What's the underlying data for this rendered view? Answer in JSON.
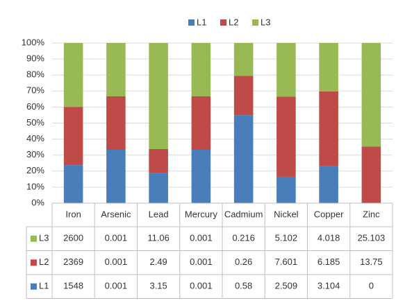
{
  "chart_data": {
    "type": "bar",
    "stacked": "percent",
    "categories": [
      "Iron",
      "Arsenic",
      "Lead",
      "Mercury",
      "Cadmium",
      "Nickel",
      "Copper",
      "Zinc"
    ],
    "series": [
      {
        "name": "L1",
        "color": "#4a7ebb",
        "values": [
          1548,
          0.001,
          3.15,
          0.001,
          0.58,
          2.509,
          3.104,
          0
        ]
      },
      {
        "name": "L2",
        "color": "#be4b48",
        "values": [
          2369,
          0.001,
          2.49,
          0.001,
          0.26,
          7.601,
          6.185,
          13.75
        ]
      },
      {
        "name": "L3",
        "color": "#98b954",
        "values": [
          2600,
          0.001,
          11.06,
          0.001,
          0.216,
          5.102,
          4.018,
          25.103
        ]
      }
    ],
    "ylim": [
      0,
      100
    ],
    "yticks": [
      {
        "value": 0,
        "label": "0%"
      },
      {
        "value": 10,
        "label": "10%"
      },
      {
        "value": 20,
        "label": "20%"
      },
      {
        "value": 30,
        "label": "30%"
      },
      {
        "value": 40,
        "label": "40%"
      },
      {
        "value": 50,
        "label": "50%"
      },
      {
        "value": 60,
        "label": "60%"
      },
      {
        "value": 70,
        "label": "70%"
      },
      {
        "value": 80,
        "label": "80%"
      },
      {
        "value": 90,
        "label": "90%"
      },
      {
        "value": 100,
        "label": "100%"
      }
    ],
    "grid": true,
    "legend": "top",
    "data_table": true
  }
}
